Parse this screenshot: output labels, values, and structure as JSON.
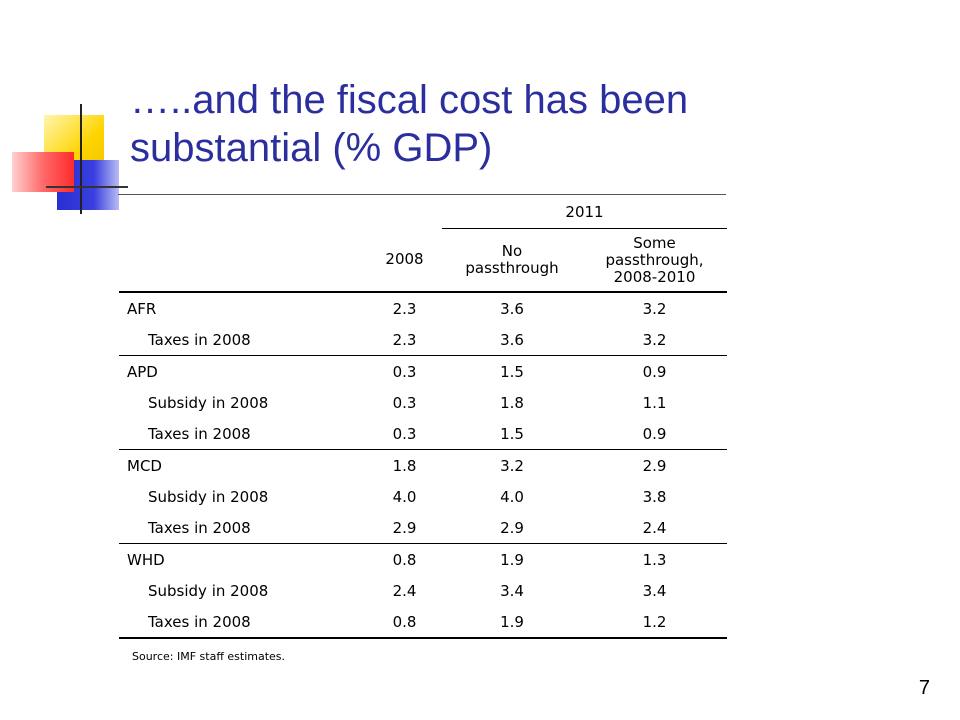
{
  "slide": {
    "title_line1": "…..and the fiscal cost has been",
    "title_line2": "substantial (% GDP)",
    "page_number": "7"
  },
  "table": {
    "group_header": "2011",
    "columns": [
      "2008",
      "No passthrough",
      "Some passthrough, 2008-2010"
    ],
    "column_lines": {
      "c2008": "2008",
      "no_1": "No",
      "no_2": "passthrough",
      "some_1": "Some",
      "some_2": "passthrough,",
      "some_3": "2008-2010"
    },
    "groups": [
      {
        "region": "AFR",
        "values": [
          "2.3",
          "3.6",
          "3.2"
        ],
        "rows": [
          {
            "label": "Taxes in 2008",
            "values": [
              "2.3",
              "3.6",
              "3.2"
            ]
          }
        ]
      },
      {
        "region": "APD",
        "values": [
          "0.3",
          "1.5",
          "0.9"
        ],
        "rows": [
          {
            "label": "Subsidy in 2008",
            "values": [
              "0.3",
              "1.8",
              "1.1"
            ]
          },
          {
            "label": "Taxes in 2008",
            "values": [
              "0.3",
              "1.5",
              "0.9"
            ]
          }
        ]
      },
      {
        "region": "MCD",
        "values": [
          "1.8",
          "3.2",
          "2.9"
        ],
        "rows": [
          {
            "label": "Subsidy in 2008",
            "values": [
              "4.0",
              "4.0",
              "3.8"
            ]
          },
          {
            "label": "Taxes in 2008",
            "values": [
              "2.9",
              "2.9",
              "2.4"
            ]
          }
        ]
      },
      {
        "region": "WHD",
        "values": [
          "0.8",
          "1.9",
          "1.3"
        ],
        "rows": [
          {
            "label": "Subsidy in 2008",
            "values": [
              "2.4",
              "3.4",
              "3.4"
            ]
          },
          {
            "label": "Taxes in 2008",
            "values": [
              "0.8",
              "1.9",
              "1.2"
            ]
          }
        ]
      }
    ],
    "source": "Source: IMF staff estimates."
  },
  "colors": {
    "title": "#2b2f9e",
    "deco_yellow": "#ffd400",
    "deco_blue": "#2a2fd1",
    "deco_red": "#ff2a2a"
  }
}
